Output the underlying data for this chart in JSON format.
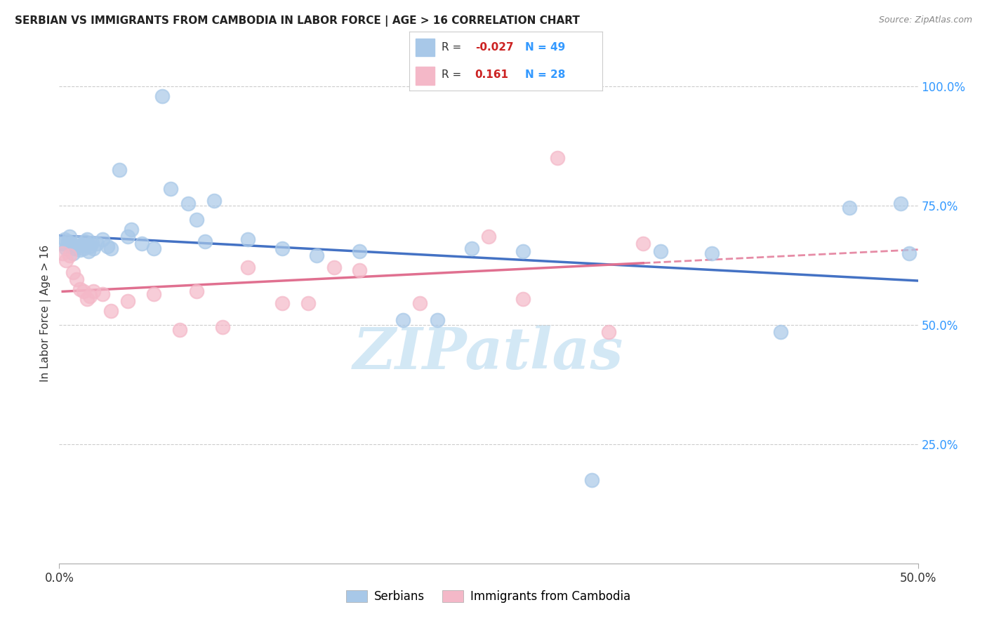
{
  "title": "SERBIAN VS IMMIGRANTS FROM CAMBODIA IN LABOR FORCE | AGE > 16 CORRELATION CHART",
  "source": "Source: ZipAtlas.com",
  "ylabel": "In Labor Force | Age > 16",
  "xlim": [
    0.0,
    0.5
  ],
  "ylim": [
    0.0,
    1.05
  ],
  "yticks": [
    0.25,
    0.5,
    0.75,
    1.0
  ],
  "ytick_labels": [
    "25.0%",
    "50.0%",
    "75.0%",
    "100.0%"
  ],
  "xtick_positions": [
    0.0,
    0.5
  ],
  "xtick_labels": [
    "0.0%",
    "50.0%"
  ],
  "legend_serbian_R": "-0.027",
  "legend_serbian_N": "49",
  "legend_cambodia_R": "0.161",
  "legend_cambodia_N": "28",
  "serbian_color": "#a8c8e8",
  "cambodia_color": "#f4b8c8",
  "serbian_line_color": "#4472c4",
  "cambodia_line_color": "#e07090",
  "background_color": "#ffffff",
  "watermark": "ZIPatlas",
  "watermark_color": "#cce4f4",
  "serbian_x": [
    0.002,
    0.003,
    0.004,
    0.005,
    0.006,
    0.007,
    0.008,
    0.009,
    0.01,
    0.011,
    0.012,
    0.013,
    0.014,
    0.015,
    0.016,
    0.017,
    0.018,
    0.019,
    0.02,
    0.022,
    0.025,
    0.028,
    0.03,
    0.035,
    0.04,
    0.042,
    0.048,
    0.055,
    0.06,
    0.065,
    0.075,
    0.08,
    0.085,
    0.09,
    0.11,
    0.13,
    0.15,
    0.175,
    0.2,
    0.22,
    0.24,
    0.27,
    0.31,
    0.35,
    0.38,
    0.42,
    0.46,
    0.49,
    0.495
  ],
  "serbian_y": [
    0.67,
    0.68,
    0.66,
    0.675,
    0.685,
    0.67,
    0.65,
    0.66,
    0.665,
    0.672,
    0.658,
    0.668,
    0.66,
    0.675,
    0.68,
    0.655,
    0.665,
    0.672,
    0.66,
    0.67,
    0.68,
    0.665,
    0.66,
    0.825,
    0.685,
    0.7,
    0.67,
    0.66,
    0.98,
    0.785,
    0.755,
    0.72,
    0.675,
    0.76,
    0.68,
    0.66,
    0.645,
    0.655,
    0.51,
    0.51,
    0.66,
    0.655,
    0.175,
    0.655,
    0.65,
    0.485,
    0.745,
    0.755,
    0.65
  ],
  "cambodia_x": [
    0.002,
    0.004,
    0.006,
    0.008,
    0.01,
    0.012,
    0.014,
    0.016,
    0.018,
    0.02,
    0.025,
    0.03,
    0.04,
    0.055,
    0.07,
    0.08,
    0.095,
    0.11,
    0.13,
    0.145,
    0.16,
    0.175,
    0.21,
    0.25,
    0.27,
    0.29,
    0.32,
    0.34
  ],
  "cambodia_y": [
    0.65,
    0.635,
    0.645,
    0.61,
    0.595,
    0.575,
    0.57,
    0.555,
    0.56,
    0.57,
    0.565,
    0.53,
    0.55,
    0.565,
    0.49,
    0.57,
    0.495,
    0.62,
    0.545,
    0.545,
    0.62,
    0.615,
    0.545,
    0.685,
    0.555,
    0.85,
    0.485,
    0.67
  ]
}
